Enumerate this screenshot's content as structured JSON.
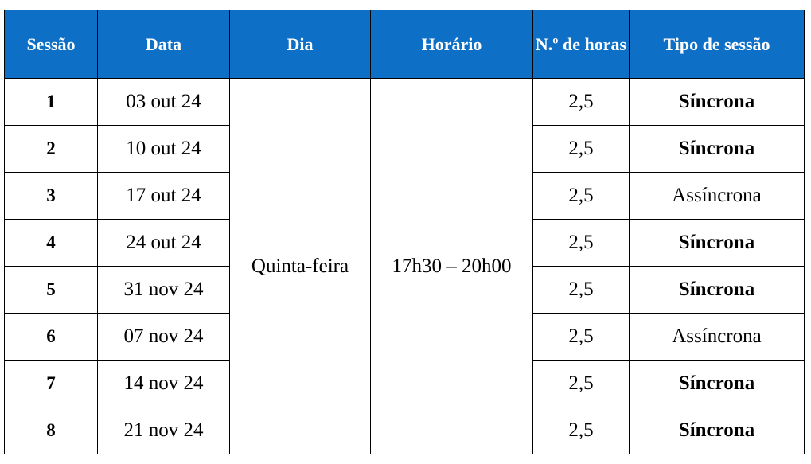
{
  "headers": {
    "sessao": "Sessão",
    "data": "Data",
    "dia": "Dia",
    "horario": "Horário",
    "horas": "N.º de horas",
    "tipo": "Tipo de sessão"
  },
  "shared": {
    "dia": "Quinta-feira",
    "horario": "17h30 – 20h00"
  },
  "rows": [
    {
      "sessao": "1",
      "data": "03 out 24",
      "horas": "2,5",
      "tipo": "Síncrona",
      "tipo_bold": true
    },
    {
      "sessao": "2",
      "data": "10 out 24",
      "horas": "2,5",
      "tipo": "Síncrona",
      "tipo_bold": true
    },
    {
      "sessao": "3",
      "data": "17 out 24",
      "horas": "2,5",
      "tipo": "Assíncrona",
      "tipo_bold": false
    },
    {
      "sessao": "4",
      "data": "24 out 24",
      "horas": "2,5",
      "tipo": "Síncrona",
      "tipo_bold": true
    },
    {
      "sessao": "5",
      "data": "31 nov 24",
      "horas": "2,5",
      "tipo": "Síncrona",
      "tipo_bold": true
    },
    {
      "sessao": "6",
      "data": "07 nov 24",
      "horas": "2,5",
      "tipo": "Assíncrona",
      "tipo_bold": false
    },
    {
      "sessao": "7",
      "data": "14 nov 24",
      "horas": "2,5",
      "tipo": "Síncrona",
      "tipo_bold": true
    },
    {
      "sessao": "8",
      "data": "21 nov 24",
      "horas": "2,5",
      "tipo": "Síncrona",
      "tipo_bold": true
    }
  ],
  "colors": {
    "header_bg": "#0d70c6",
    "header_text": "#ffffff",
    "border": "#000000"
  }
}
